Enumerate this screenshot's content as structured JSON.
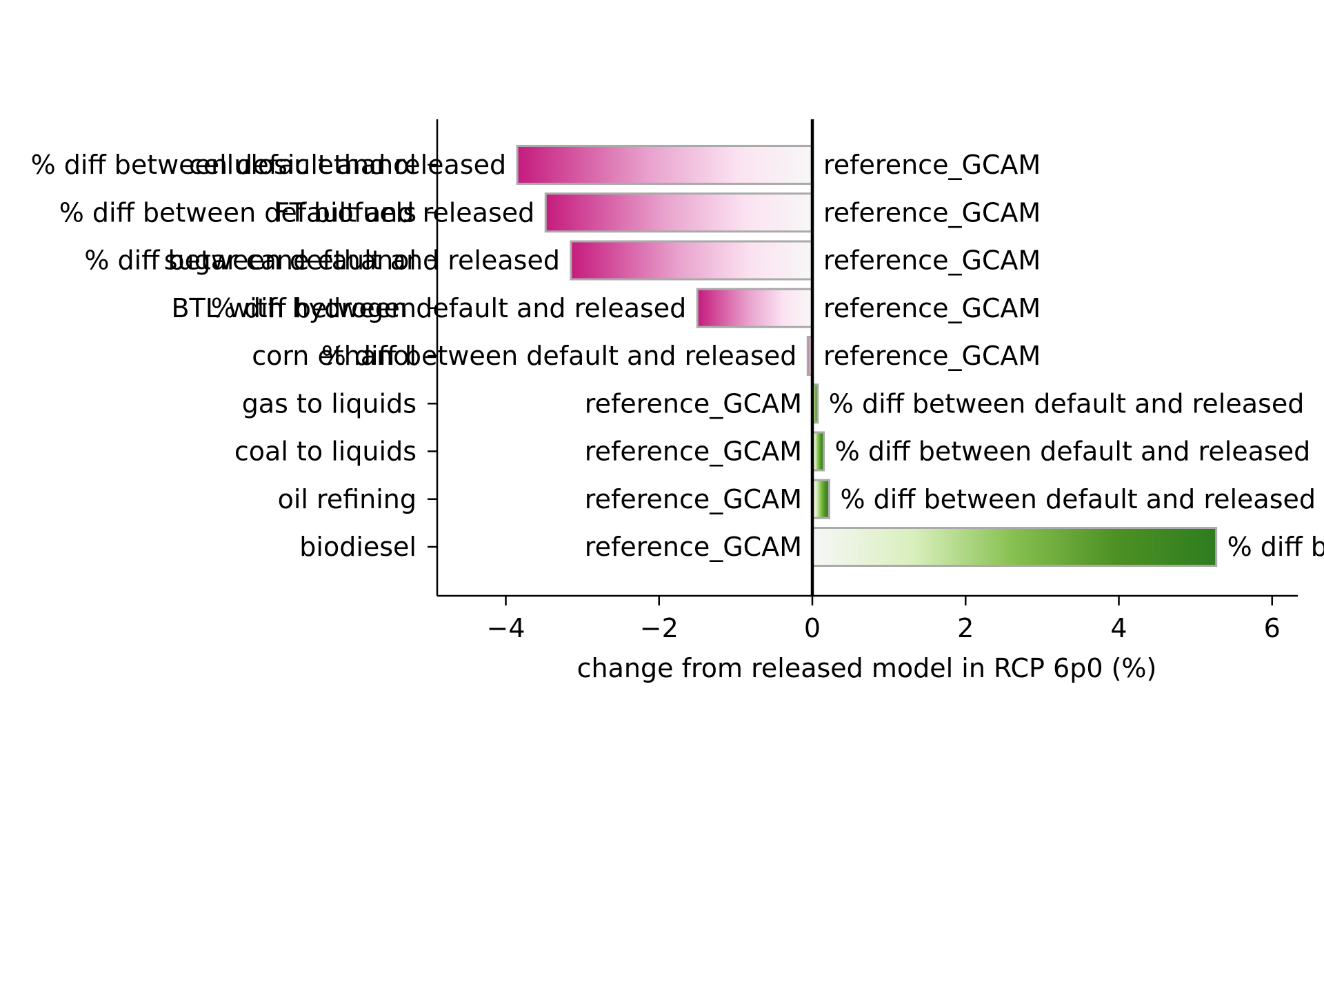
{
  "chart_data": {
    "type": "bar",
    "orientation": "horizontal",
    "xlabel": "change from released model in RCP 6p0 (%)",
    "xlim": [
      -4.9,
      6.3
    ],
    "xticks": [
      -4,
      -2,
      0,
      2,
      4,
      6
    ],
    "xtick_labels": [
      "−4",
      "−2",
      "0",
      "2",
      "4",
      "6"
    ],
    "categories": [
      "cellulosic ethanol",
      "FT biofuels",
      "sugar cane ethanol",
      "BTL with hydrogen",
      "corn ethanol",
      "gas to liquids",
      "coal to liquids",
      "oil refining",
      "biodiesel"
    ],
    "values": [
      -3.85,
      -3.48,
      -3.15,
      -1.5,
      -0.06,
      0.07,
      0.15,
      0.22,
      5.27
    ],
    "bar_label": "% diff between default and released",
    "reference_label": "reference_GCAM",
    "grid": false,
    "colors": {
      "negative_strong": "#c51b7d",
      "negative_light": "#f1b6da",
      "neutral": "#f7f7f7",
      "positive_light": "#b8e186",
      "positive_strong": "#2e7d1f",
      "bar_edge": "#aaaaaa"
    }
  }
}
